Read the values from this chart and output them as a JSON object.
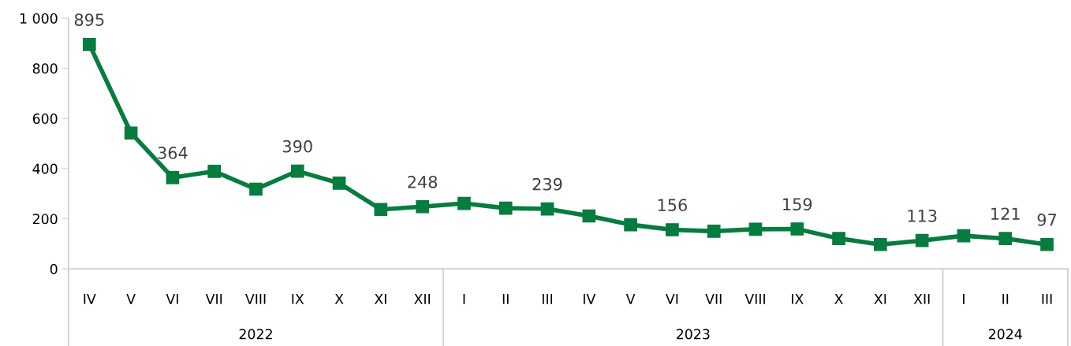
{
  "chart_data": {
    "type": "line",
    "categories": [
      "IV",
      "V",
      "VI",
      "VII",
      "VIII",
      "IX",
      "X",
      "XI",
      "XII",
      "I",
      "II",
      "III",
      "IV",
      "V",
      "VI",
      "VII",
      "VIII",
      "IX",
      "X",
      "XI",
      "XII",
      "I",
      "II",
      "III"
    ],
    "series": [
      {
        "color": "#067c3e",
        "values": [
          895,
          542,
          364,
          389,
          318,
          390,
          342,
          237,
          248,
          261,
          242,
          239,
          211,
          176,
          156,
          150,
          158,
          159,
          121,
          97,
          113,
          132,
          121,
          97
        ],
        "value_labels": [
          "895",
          null,
          "364",
          null,
          null,
          "390",
          null,
          null,
          "248",
          null,
          null,
          "239",
          null,
          null,
          "156",
          null,
          null,
          "159",
          null,
          null,
          "113",
          null,
          "121",
          "97"
        ]
      }
    ],
    "annotations": [
      "2022",
      "2023",
      "2024"
    ],
    "ylim": [
      0,
      1000
    ],
    "yticks": [
      0,
      200,
      400,
      600,
      800,
      {
        "value": 1000,
        "label": "1 000"
      }
    ],
    "marker": "square",
    "line_style": "solid",
    "grid": false
  }
}
